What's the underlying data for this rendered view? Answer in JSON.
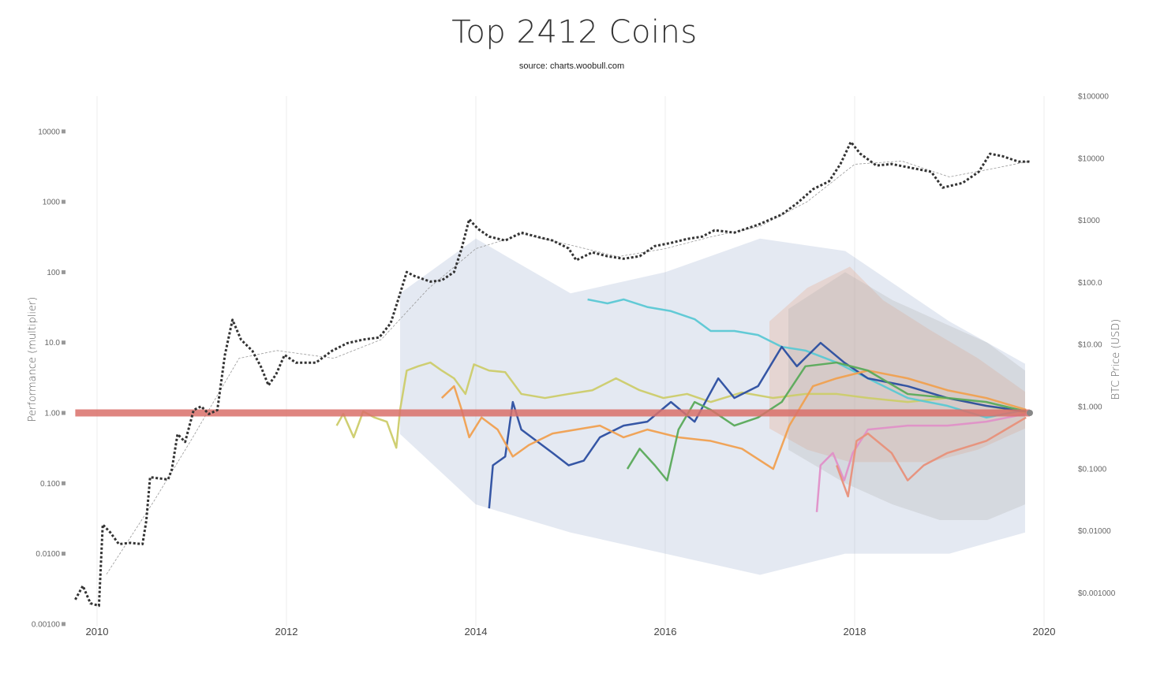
{
  "chart_data": {
    "type": "line",
    "title": "Top 2412 Coins",
    "subtitle": "source: charts.woobull.com",
    "ylabel_left": "Performance (multiplier)",
    "ylabel_right": "BTC Price (USD)",
    "y_scale": "log",
    "xlim": [
      2009.77,
      2020.1
    ],
    "ylim_left": [
      0.001,
      30000
    ],
    "ylim_right": [
      0.0005,
      100000
    ],
    "grid": "vertical",
    "x_ticks": [
      "2010",
      "2012",
      "2014",
      "2016",
      "2018",
      "2020"
    ],
    "x_tick_values": [
      2010,
      2012,
      2014,
      2016,
      2018,
      2020
    ],
    "left_ticks": [
      "10000",
      "1000",
      "100",
      "10.0",
      "1.00",
      "0.100",
      "0.0100",
      "0.00100"
    ],
    "left_tick_values": [
      10000,
      1000,
      100,
      10,
      1,
      0.1,
      0.01,
      0.001
    ],
    "right_ticks": [
      "$100000",
      "$10000",
      "$1000",
      "$100.0",
      "$10.00",
      "$1.000",
      "$0.1000",
      "$0.01000",
      "$0.001000"
    ],
    "right_tick_values": [
      100000,
      10000,
      1000,
      100,
      10,
      1,
      0.1,
      0.01,
      0.001
    ],
    "baseline": {
      "value": 1.0,
      "from": 2009.77,
      "to": 2019.85,
      "color": "#d9706a"
    },
    "btc_price": {
      "axis": "right",
      "color": "#333333",
      "style": "dotted",
      "x": [
        2009.77,
        2009.85,
        2009.93,
        2010.02,
        2010.06,
        2010.14,
        2010.23,
        2010.35,
        2010.48,
        2010.52,
        2010.56,
        2010.75,
        2010.79,
        2010.85,
        2010.93,
        2011.02,
        2011.1,
        2011.18,
        2011.27,
        2011.35,
        2011.43,
        2011.52,
        2011.64,
        2011.73,
        2011.81,
        2011.89,
        2011.98,
        2012.1,
        2012.31,
        2012.48,
        2012.64,
        2012.81,
        2012.98,
        2013.1,
        2013.18,
        2013.27,
        2013.35,
        2013.52,
        2013.64,
        2013.77,
        2013.85,
        2013.93,
        2014.02,
        2014.14,
        2014.31,
        2014.48,
        2014.64,
        2014.81,
        2014.98,
        2015.06,
        2015.23,
        2015.39,
        2015.56,
        2015.73,
        2015.89,
        2016.06,
        2016.23,
        2016.39,
        2016.52,
        2016.73,
        2016.98,
        2017.23,
        2017.39,
        2017.56,
        2017.73,
        2017.85,
        2017.96,
        2018.06,
        2018.23,
        2018.39,
        2018.56,
        2018.81,
        2018.93,
        2019.14,
        2019.31,
        2019.43,
        2019.56,
        2019.73,
        2019.85
      ],
      "y": [
        0.00078,
        0.0013,
        0.00068,
        0.00062,
        0.0126,
        0.0094,
        0.0061,
        0.0064,
        0.0061,
        0.0146,
        0.073,
        0.067,
        0.098,
        0.36,
        0.27,
        0.88,
        1.01,
        0.76,
        0.88,
        6.8,
        25,
        12,
        7.9,
        4.4,
        2.2,
        3.3,
        6.8,
        5.1,
        5.1,
        7.9,
        10.5,
        12,
        13,
        22,
        53,
        147,
        127,
        103,
        108,
        147,
        353,
        1040,
        733,
        547,
        473,
        634,
        547,
        473,
        353,
        228,
        305,
        264,
        241,
        264,
        385,
        433,
        501,
        547,
        692,
        634,
        849,
        1240,
        1870,
        3170,
        4250,
        8070,
        18300,
        11800,
        7620,
        8070,
        7180,
        6030,
        3360,
        4000,
        6030,
        11800,
        10800,
        8810,
        8810
      ]
    },
    "btc_moving_average": {
      "axis": "right",
      "color": "#999999",
      "style": "dashed",
      "x": [
        2010.1,
        2010.6,
        2011.0,
        2011.5,
        2011.9,
        2012.5,
        2013.0,
        2013.5,
        2014.0,
        2014.5,
        2015.0,
        2015.5,
        2016.0,
        2016.5,
        2017.0,
        2017.5,
        2018.0,
        2018.5,
        2019.0,
        2019.5,
        2019.85
      ],
      "y": [
        0.002,
        0.03,
        0.3,
        6,
        8,
        6,
        12,
        80,
        350,
        600,
        400,
        260,
        350,
        550,
        800,
        2000,
        8000,
        9000,
        5000,
        7000,
        9000
      ]
    },
    "coin_envelope": [
      {
        "color": "#9fb0cf",
        "x": [
          2013.2,
          2014.0,
          2015.0,
          2016.0,
          2017.0,
          2017.9,
          2019.0,
          2019.8
        ],
        "upper": [
          50,
          300,
          50,
          100,
          300,
          200,
          20,
          5
        ],
        "lower": [
          0.5,
          0.05,
          0.02,
          0.01,
          0.005,
          0.01,
          0.01,
          0.02
        ]
      },
      {
        "color": "#e8a080",
        "x": [
          2017.1,
          2017.5,
          2017.95,
          2018.3,
          2018.8,
          2019.3,
          2019.8
        ],
        "upper": [
          20,
          60,
          120,
          40,
          15,
          6,
          2
        ],
        "lower": [
          0.6,
          0.3,
          0.2,
          0.2,
          0.2,
          0.3,
          0.6
        ]
      },
      {
        "color": "#b0b0b0",
        "x": [
          2017.3,
          2017.9,
          2018.4,
          2018.9,
          2019.4,
          2019.8
        ],
        "upper": [
          30,
          100,
          40,
          20,
          10,
          4
        ],
        "lower": [
          0.3,
          0.1,
          0.05,
          0.03,
          0.03,
          0.05
        ]
      }
    ],
    "series": [
      {
        "color": "#cccc6a",
        "x": [
          2012.53,
          2012.6,
          2012.71,
          2012.81,
          2012.93,
          2013.06,
          2013.16,
          2013.2,
          2013.27,
          2013.39,
          2013.52,
          2013.64,
          2013.77,
          2013.89,
          2013.98,
          2014.14,
          2014.31,
          2014.48,
          2014.73,
          2014.98,
          2015.23,
          2015.48,
          2015.73,
          2015.98,
          2016.23,
          2016.48,
          2016.81,
          2017.14,
          2017.48,
          2017.81,
          2018.14,
          2018.56,
          2018.98,
          2019.39,
          2019.81
        ],
        "y": [
          0.66,
          0.97,
          0.45,
          1.05,
          0.86,
          0.75,
          0.32,
          1.11,
          4.0,
          4.6,
          5.2,
          4.0,
          3.1,
          1.86,
          4.9,
          4.0,
          3.8,
          1.86,
          1.63,
          1.86,
          2.1,
          3.1,
          2.1,
          1.63,
          1.86,
          1.43,
          1.95,
          1.63,
          1.86,
          1.86,
          1.63,
          1.43,
          1.63,
          1.26,
          1.0
        ]
      },
      {
        "color": "#5bc8d4",
        "x": [
          2015.18,
          2015.39,
          2015.56,
          2015.81,
          2016.06,
          2016.31,
          2016.48,
          2016.73,
          2016.98,
          2017.23,
          2017.48,
          2017.81,
          2018.14,
          2018.56,
          2018.98,
          2019.39,
          2019.81
        ],
        "y": [
          41,
          36,
          41,
          32,
          28,
          21.5,
          14.6,
          14.6,
          12.8,
          8.7,
          7.7,
          5.2,
          3.1,
          1.63,
          1.26,
          0.86,
          1.11
        ]
      },
      {
        "color": "#2b4ea0",
        "x": [
          2014.14,
          2014.18,
          2014.31,
          2014.39,
          2014.48,
          2014.64,
          2014.81,
          2014.98,
          2015.14,
          2015.31,
          2015.56,
          2015.81,
          2016.06,
          2016.31,
          2016.56,
          2016.73,
          2016.98,
          2017.23,
          2017.39,
          2017.64,
          2017.89,
          2018.14,
          2018.56,
          2018.98,
          2019.39,
          2019.81
        ],
        "y": [
          0.044,
          0.18,
          0.24,
          1.43,
          0.58,
          0.4,
          0.27,
          0.18,
          0.21,
          0.45,
          0.66,
          0.75,
          1.43,
          0.75,
          3.1,
          1.63,
          2.4,
          8.7,
          4.6,
          9.9,
          5.2,
          3.1,
          2.4,
          1.63,
          1.26,
          1.05
        ]
      },
      {
        "color": "#f0a050",
        "x": [
          2013.64,
          2013.77,
          2013.85,
          2013.93,
          2014.06,
          2014.23,
          2014.39,
          2014.56,
          2014.81,
          2015.06,
          2015.31,
          2015.56,
          2015.81,
          2016.14,
          2016.48,
          2016.81,
          2017.14,
          2017.31,
          2017.56,
          2017.81,
          2018.14,
          2018.56,
          2018.98,
          2019.39,
          2019.81
        ],
        "y": [
          1.63,
          2.4,
          1.11,
          0.45,
          0.86,
          0.58,
          0.24,
          0.35,
          0.51,
          0.58,
          0.66,
          0.45,
          0.58,
          0.45,
          0.4,
          0.31,
          0.16,
          0.66,
          2.4,
          3.1,
          4.0,
          3.1,
          2.1,
          1.63,
          1.11
        ]
      },
      {
        "color": "#5aaa5a",
        "x": [
          2015.6,
          2015.73,
          2015.89,
          2016.02,
          2016.14,
          2016.31,
          2016.48,
          2016.73,
          2016.98,
          2017.23,
          2017.48,
          2017.81,
          2018.14,
          2018.56,
          2018.98,
          2019.39,
          2019.81
        ],
        "y": [
          0.16,
          0.31,
          0.18,
          0.11,
          0.58,
          1.43,
          1.11,
          0.66,
          0.86,
          1.43,
          4.6,
          5.2,
          4.0,
          1.86,
          1.63,
          1.43,
          1.05
        ]
      },
      {
        "color": "#e090c8",
        "x": [
          2017.6,
          2017.64,
          2017.77,
          2017.89,
          2017.98,
          2018.14,
          2018.56,
          2018.98,
          2019.39,
          2019.81
        ],
        "y": [
          0.039,
          0.18,
          0.27,
          0.11,
          0.27,
          0.58,
          0.66,
          0.66,
          0.75,
          0.97
        ]
      },
      {
        "color": "#e8907a",
        "x": [
          2017.81,
          2017.93,
          2018.02,
          2018.14,
          2018.39,
          2018.56,
          2018.73,
          2018.98,
          2019.39,
          2019.81
        ],
        "y": [
          0.18,
          0.065,
          0.4,
          0.51,
          0.27,
          0.11,
          0.18,
          0.27,
          0.4,
          0.86
        ]
      }
    ]
  }
}
